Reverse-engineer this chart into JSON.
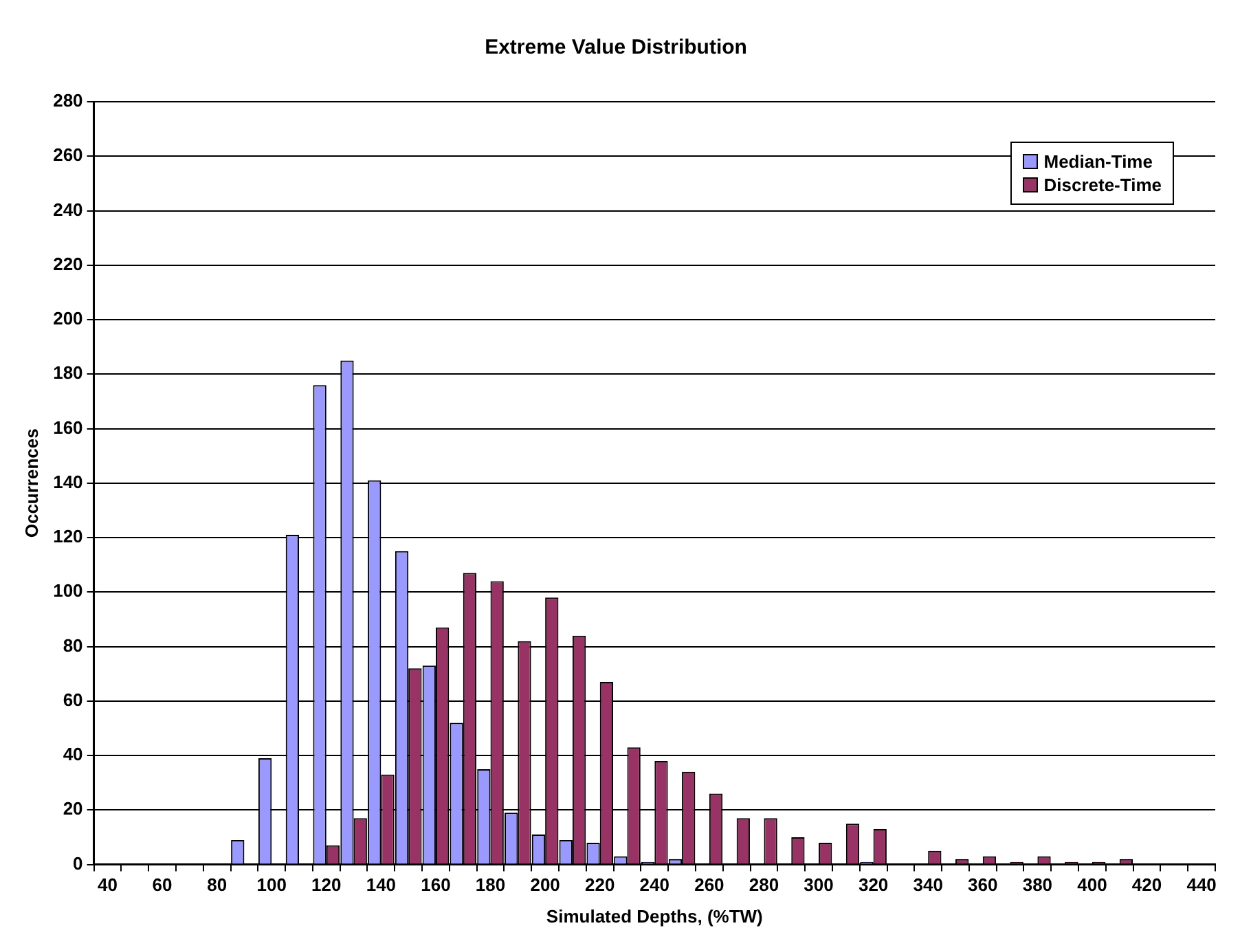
{
  "chart_data": {
    "type": "bar",
    "title": "Extreme Value Distribution",
    "xlabel": "Simulated Depths, (%TW)",
    "ylabel": "Occurrences",
    "categories": [
      "40",
      null,
      "60",
      null,
      "80",
      null,
      "100",
      null,
      "120",
      null,
      "140",
      null,
      "160",
      null,
      "180",
      null,
      "200",
      null,
      "220",
      null,
      "240",
      null,
      "260",
      null,
      "280",
      null,
      "300",
      null,
      "320",
      null,
      "340",
      null,
      "360",
      null,
      "380",
      null,
      "400",
      null,
      "420",
      null,
      "440"
    ],
    "series": [
      {
        "name": "Median-Time",
        "color": "#9999ff",
        "values": [
          0,
          0,
          0,
          0,
          0,
          9,
          39,
          121,
          176,
          185,
          141,
          115,
          73,
          52,
          35,
          19,
          11,
          9,
          8,
          3,
          1,
          2,
          0,
          0,
          0,
          0,
          0,
          0,
          1,
          0,
          0,
          0,
          0,
          0,
          0,
          0,
          0,
          0,
          0,
          0,
          0
        ]
      },
      {
        "name": "Discrete-Time",
        "color": "#993366",
        "values": [
          0,
          0,
          0,
          0,
          0,
          0,
          0,
          0,
          7,
          17,
          33,
          72,
          87,
          107,
          104,
          82,
          98,
          84,
          67,
          43,
          38,
          34,
          26,
          17,
          17,
          10,
          8,
          15,
          13,
          0,
          5,
          2,
          3,
          1,
          3,
          1,
          1,
          2,
          0,
          0,
          0
        ]
      }
    ],
    "ylim": [
      0,
      280
    ],
    "yticks": [
      0,
      20,
      40,
      60,
      80,
      100,
      120,
      140,
      160,
      180,
      200,
      220,
      240,
      260,
      280
    ],
    "grid": "y",
    "legend": "top right"
  }
}
